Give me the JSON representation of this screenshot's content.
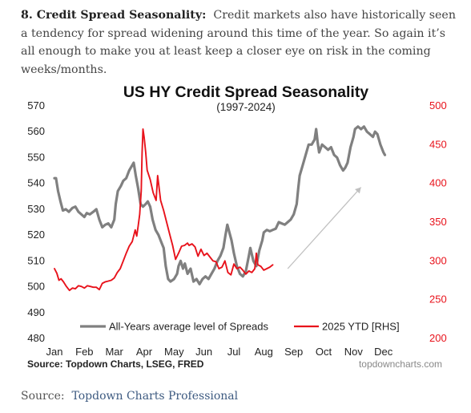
{
  "paragraph": {
    "lead": "8. Credit Spread Seasonality:",
    "body": "Credit markets also have historically seen a tendency for spread widening around this time of the year. So again it’s all enough to make you at least keep a closer eye on risk in the coming weeks/months."
  },
  "footer": {
    "label": "Source:",
    "link_text": "Topdown Charts Professional"
  },
  "chart_data": {
    "type": "line",
    "title": "US HY Credit Spread Seasonality",
    "subtitle": "(1997-2024)",
    "source_note": "Source: Topdown Charts, LSEG, FRED",
    "watermark": "topdowncharts.com",
    "x_ticks": [
      "Jan",
      "Feb",
      "Mar",
      "Apr",
      "May",
      "Jun",
      "Jul",
      "Aug",
      "Sep",
      "Oct",
      "Nov",
      "Dec"
    ],
    "xlim": [
      0,
      12
    ],
    "y_left": {
      "lim": [
        480,
        570
      ],
      "ticks": [
        480,
        490,
        500,
        510,
        520,
        530,
        540,
        550,
        560,
        570
      ]
    },
    "y_right": {
      "lim": [
        200,
        500
      ],
      "ticks": [
        200,
        250,
        300,
        350,
        400,
        450,
        500
      ],
      "color": "#e8121b"
    },
    "grid": false,
    "legend_position": "bottom",
    "series": [
      {
        "name": "All-Years average level of Spreads",
        "axis": "left",
        "color": "#808080",
        "points": [
          [
            0.0,
            542
          ],
          [
            0.05,
            542
          ],
          [
            0.12,
            537
          ],
          [
            0.2,
            533
          ],
          [
            0.28,
            529.5
          ],
          [
            0.38,
            530
          ],
          [
            0.48,
            529
          ],
          [
            0.6,
            530.5
          ],
          [
            0.7,
            531
          ],
          [
            0.8,
            529
          ],
          [
            0.9,
            528
          ],
          [
            1.0,
            527
          ],
          [
            1.08,
            528.5
          ],
          [
            1.18,
            528
          ],
          [
            1.3,
            529
          ],
          [
            1.4,
            530
          ],
          [
            1.5,
            526
          ],
          [
            1.6,
            523
          ],
          [
            1.7,
            524
          ],
          [
            1.8,
            524.5
          ],
          [
            1.9,
            523
          ],
          [
            2.0,
            526
          ],
          [
            2.05,
            532
          ],
          [
            2.12,
            537
          ],
          [
            2.22,
            539
          ],
          [
            2.3,
            541
          ],
          [
            2.4,
            542
          ],
          [
            2.5,
            545
          ],
          [
            2.6,
            547
          ],
          [
            2.65,
            548
          ],
          [
            2.72,
            543
          ],
          [
            2.8,
            538
          ],
          [
            2.88,
            532
          ],
          [
            2.96,
            531
          ],
          [
            3.05,
            532
          ],
          [
            3.12,
            533
          ],
          [
            3.2,
            531
          ],
          [
            3.28,
            526
          ],
          [
            3.38,
            522
          ],
          [
            3.48,
            520
          ],
          [
            3.58,
            517
          ],
          [
            3.65,
            515
          ],
          [
            3.72,
            508
          ],
          [
            3.8,
            503
          ],
          [
            3.88,
            502
          ],
          [
            4.0,
            503
          ],
          [
            4.1,
            505
          ],
          [
            4.15,
            508
          ],
          [
            4.22,
            510
          ],
          [
            4.3,
            507
          ],
          [
            4.36,
            509
          ],
          [
            4.45,
            505
          ],
          [
            4.55,
            507
          ],
          [
            4.65,
            502
          ],
          [
            4.75,
            503
          ],
          [
            4.85,
            501
          ],
          [
            4.95,
            503
          ],
          [
            5.05,
            504
          ],
          [
            5.15,
            503
          ],
          [
            5.25,
            505
          ],
          [
            5.35,
            507
          ],
          [
            5.45,
            510
          ],
          [
            5.55,
            512
          ],
          [
            5.65,
            515
          ],
          [
            5.72,
            520
          ],
          [
            5.78,
            524
          ],
          [
            5.85,
            521
          ],
          [
            5.92,
            518
          ],
          [
            6.0,
            513
          ],
          [
            6.1,
            508
          ],
          [
            6.2,
            505
          ],
          [
            6.3,
            504
          ],
          [
            6.4,
            506
          ],
          [
            6.5,
            512
          ],
          [
            6.55,
            515
          ],
          [
            6.65,
            510
          ],
          [
            6.75,
            508
          ],
          [
            6.85,
            514
          ],
          [
            6.95,
            518
          ],
          [
            7.0,
            521
          ],
          [
            7.1,
            522
          ],
          [
            7.2,
            521.5
          ],
          [
            7.3,
            522
          ],
          [
            7.4,
            522.5
          ],
          [
            7.5,
            525
          ],
          [
            7.6,
            524.5
          ],
          [
            7.7,
            524
          ],
          [
            7.8,
            525
          ],
          [
            7.9,
            526
          ],
          [
            8.0,
            528
          ],
          [
            8.1,
            532
          ],
          [
            8.15,
            538
          ],
          [
            8.2,
            543
          ],
          [
            8.3,
            547
          ],
          [
            8.4,
            551
          ],
          [
            8.5,
            555
          ],
          [
            8.6,
            555
          ],
          [
            8.7,
            557
          ],
          [
            8.75,
            561
          ],
          [
            8.8,
            556
          ],
          [
            8.85,
            552
          ],
          [
            8.95,
            555
          ],
          [
            9.05,
            554
          ],
          [
            9.15,
            553
          ],
          [
            9.25,
            554
          ],
          [
            9.35,
            551
          ],
          [
            9.45,
            550
          ],
          [
            9.55,
            547
          ],
          [
            9.65,
            545
          ],
          [
            9.72,
            546
          ],
          [
            9.8,
            548
          ],
          [
            9.9,
            554
          ],
          [
            10.0,
            558
          ],
          [
            10.05,
            561
          ],
          [
            10.15,
            562
          ],
          [
            10.25,
            561
          ],
          [
            10.35,
            562
          ],
          [
            10.45,
            560
          ],
          [
            10.55,
            559
          ],
          [
            10.65,
            558
          ],
          [
            10.72,
            560
          ],
          [
            10.8,
            559
          ],
          [
            10.9,
            555
          ],
          [
            11.0,
            552
          ],
          [
            11.05,
            551
          ]
        ]
      },
      {
        "name": "2025 YTD [RHS]",
        "axis": "right",
        "color": "#e8121b",
        "points": [
          [
            0.0,
            290
          ],
          [
            0.08,
            284
          ],
          [
            0.15,
            275
          ],
          [
            0.22,
            277
          ],
          [
            0.3,
            273
          ],
          [
            0.4,
            267
          ],
          [
            0.5,
            262
          ],
          [
            0.6,
            265
          ],
          [
            0.7,
            264
          ],
          [
            0.8,
            268
          ],
          [
            0.9,
            267
          ],
          [
            1.0,
            265
          ],
          [
            1.1,
            268
          ],
          [
            1.2,
            267
          ],
          [
            1.3,
            266
          ],
          [
            1.4,
            266
          ],
          [
            1.5,
            263
          ],
          [
            1.6,
            271
          ],
          [
            1.7,
            273
          ],
          [
            1.8,
            274
          ],
          [
            1.9,
            275
          ],
          [
            2.0,
            278
          ],
          [
            2.1,
            285
          ],
          [
            2.2,
            290
          ],
          [
            2.3,
            300
          ],
          [
            2.4,
            310
          ],
          [
            2.5,
            319
          ],
          [
            2.6,
            325
          ],
          [
            2.7,
            340
          ],
          [
            2.75,
            332
          ],
          [
            2.8,
            345
          ],
          [
            2.85,
            360
          ],
          [
            2.9,
            390
          ],
          [
            2.93,
            440
          ],
          [
            2.96,
            470
          ],
          [
            3.0,
            459
          ],
          [
            3.05,
            440
          ],
          [
            3.1,
            417
          ],
          [
            3.2,
            405
          ],
          [
            3.3,
            388
          ],
          [
            3.4,
            378
          ],
          [
            3.45,
            410
          ],
          [
            3.55,
            378
          ],
          [
            3.65,
            365
          ],
          [
            3.75,
            350
          ],
          [
            3.85,
            335
          ],
          [
            3.95,
            320
          ],
          [
            4.05,
            302
          ],
          [
            4.15,
            310
          ],
          [
            4.25,
            319
          ],
          [
            4.35,
            320
          ],
          [
            4.45,
            323
          ],
          [
            4.5,
            320
          ],
          [
            4.6,
            322
          ],
          [
            4.7,
            318
          ],
          [
            4.8,
            306
          ],
          [
            4.9,
            315
          ],
          [
            5.0,
            307
          ],
          [
            5.1,
            310
          ],
          [
            5.2,
            305
          ],
          [
            5.3,
            300
          ],
          [
            5.4,
            299
          ],
          [
            5.5,
            290
          ],
          [
            5.6,
            292
          ],
          [
            5.7,
            300
          ],
          [
            5.8,
            285
          ],
          [
            5.9,
            282
          ],
          [
            6.0,
            296
          ],
          [
            6.1,
            290
          ],
          [
            6.2,
            292
          ],
          [
            6.3,
            288
          ],
          [
            6.4,
            283
          ],
          [
            6.5,
            287
          ],
          [
            6.6,
            285
          ],
          [
            6.7,
            290
          ],
          [
            6.75,
            310
          ],
          [
            6.8,
            295
          ],
          [
            6.9,
            293
          ],
          [
            7.0,
            288
          ],
          [
            7.1,
            290
          ],
          [
            7.2,
            292
          ],
          [
            7.3,
            295
          ]
        ]
      }
    ],
    "annotations": [
      {
        "type": "arrow",
        "color": "#c0c0c0",
        "from": [
          7.8,
          507
        ],
        "to": [
          10.25,
          538.5
        ]
      }
    ]
  }
}
